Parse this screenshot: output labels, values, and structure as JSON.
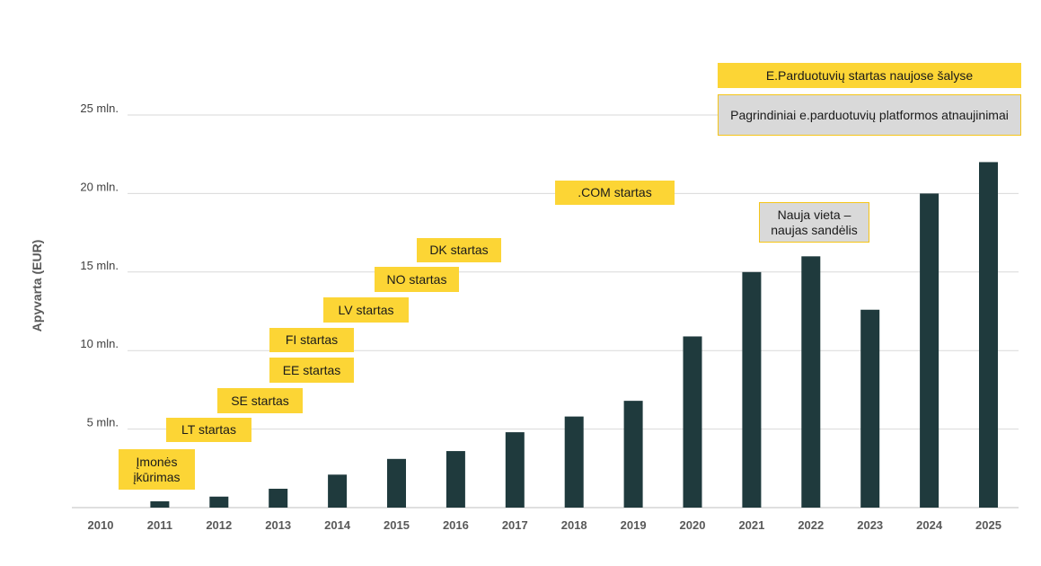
{
  "chart_data": {
    "type": "bar",
    "title": "",
    "xlabel": "",
    "ylabel": "Apyvarta (EUR)",
    "categories": [
      "2010",
      "2011",
      "2012",
      "2013",
      "2014",
      "2015",
      "2016",
      "2017",
      "2018",
      "2019",
      "2020",
      "2021",
      "2022",
      "2023",
      "2024",
      "2025"
    ],
    "values": [
      0,
      0.4,
      0.7,
      1.2,
      2.1,
      3.1,
      3.6,
      4.8,
      5.8,
      6.8,
      10.9,
      15.0,
      16.0,
      12.6,
      20.0,
      22.0
    ],
    "value_unit": "mln. EUR",
    "ylim": [
      0,
      25
    ],
    "yticks": [
      {
        "value": 5,
        "label": "5 mln."
      },
      {
        "value": 10,
        "label": "10 mln."
      },
      {
        "value": 15,
        "label": "15 mln."
      },
      {
        "value": 20,
        "label": "20 mln."
      },
      {
        "value": 25,
        "label": "25 mln."
      }
    ],
    "grid": true,
    "annotations": [
      {
        "text": "Įmonės įkūrimas",
        "year": "2011",
        "style": "highlight"
      },
      {
        "text": "LT startas",
        "year": "2012",
        "style": "highlight"
      },
      {
        "text": "SE startas",
        "year": "2013",
        "style": "highlight"
      },
      {
        "text": "EE startas",
        "year": "2014",
        "style": "highlight"
      },
      {
        "text": "FI startas",
        "year": "2014",
        "style": "highlight"
      },
      {
        "text": "LV startas",
        "year": "2015",
        "style": "highlight"
      },
      {
        "text": "NO startas",
        "year": "2016",
        "style": "highlight"
      },
      {
        "text": "DK startas",
        "year": "2016",
        "style": "highlight"
      },
      {
        "text": ".COM startas",
        "year": "2019",
        "style": "highlight"
      },
      {
        "text": "Nauja vieta – naujas sandėlis",
        "year": "2022",
        "style": "muted"
      },
      {
        "text": "E.Parduotuvių startas naujose šalyse",
        "year": "2024",
        "style": "highlight"
      },
      {
        "text": "Pagrindiniai e.parduotuvių platformos atnaujinimai",
        "year": "2024",
        "style": "muted"
      }
    ],
    "colors": {
      "bar": "#1f3a3d",
      "highlight": "#fcd535",
      "muted": "#d9d9d9",
      "muted_border": "#f5c518"
    }
  }
}
